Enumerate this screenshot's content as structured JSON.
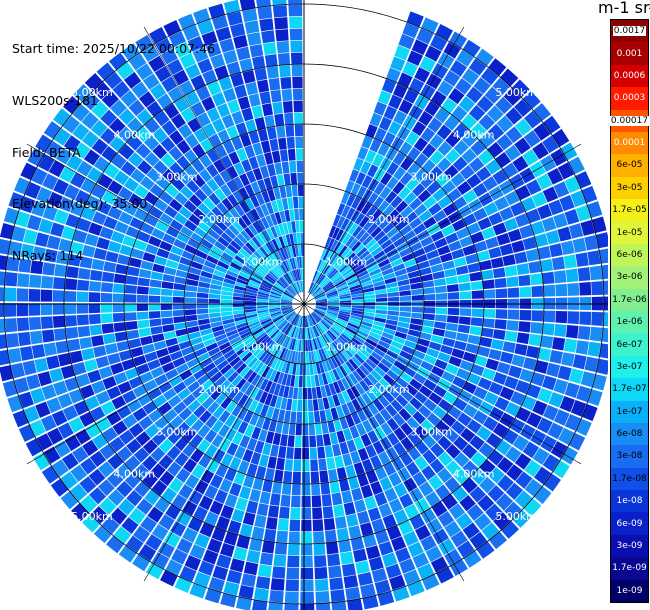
{
  "header": {
    "start_time": "Start time: 2025/10/22 00:07:46",
    "instrument": "WLS200s-181",
    "field": "Field: BETA",
    "elevation": "Elevation(deg): 35.00",
    "nrays": "NRays: 114"
  },
  "colorbar": {
    "title": "m-1 sr-1",
    "labels": [
      "0.0017",
      "0.001",
      "0.0006",
      "0.0003",
      "0.00017",
      "0.0001",
      "6e-05",
      "3e-05",
      "1.7e-05",
      "1e-05",
      "6e-06",
      "3e-06",
      "1.7e-06",
      "1e-06",
      "6e-07",
      "3e-07",
      "1.7e-07",
      "1e-07",
      "6e-08",
      "3e-08",
      "1.7e-08",
      "1e-08",
      "6e-09",
      "3e-09",
      "1.7e-09",
      "1e-09"
    ],
    "colors": [
      "#8b0000",
      "#a80000",
      "#d40000",
      "#ff1a00",
      "#ff5500",
      "#ff8c00",
      "#ffb000",
      "#ffd000",
      "#f4ef1a",
      "#e0f53a",
      "#c0f55a",
      "#a2f278",
      "#84ee8e",
      "#5ff2ae",
      "#3ef2cd",
      "#1ef0ea",
      "#0ed8f5",
      "#0ab0f8",
      "#1a8cf5",
      "#1a6cf0",
      "#1050e8",
      "#0a35d8",
      "#0a20c8",
      "#0a10b0",
      "#0a0890",
      "#000068"
    ]
  },
  "chart_data": {
    "type": "heatmap",
    "title": "",
    "field": "BETA",
    "units": "m-1 sr-1",
    "elevation_deg": 35.0,
    "nrays": 114,
    "missing_azimuth_sector_deg": [
      0,
      20
    ],
    "range_rings_km": [
      1,
      2,
      3,
      4,
      5
    ],
    "range_ring_labels": [
      "1.00km",
      "2.00km",
      "3.00km",
      "4.00km",
      "5.00km"
    ],
    "max_range_km": 5.2,
    "color_scale": [
      "1e-09",
      "3e-09",
      "1.7e-09",
      "6e-09",
      "1e-08",
      "1.7e-08",
      "3e-08",
      "6e-08",
      "1e-07",
      "1.7e-07",
      "3e-07",
      "6e-07",
      "1e-06",
      "1.7e-06",
      "3e-06",
      "6e-06",
      "1e-05",
      "1.7e-05",
      "3e-05",
      "6e-05",
      "0.0001",
      "0.00017",
      "0.0003",
      "0.0006",
      "0.001",
      "0.0017"
    ],
    "dominant_values": [
      "1e-08",
      "1.7e-08",
      "3e-08",
      "6e-08",
      "1e-07"
    ]
  }
}
